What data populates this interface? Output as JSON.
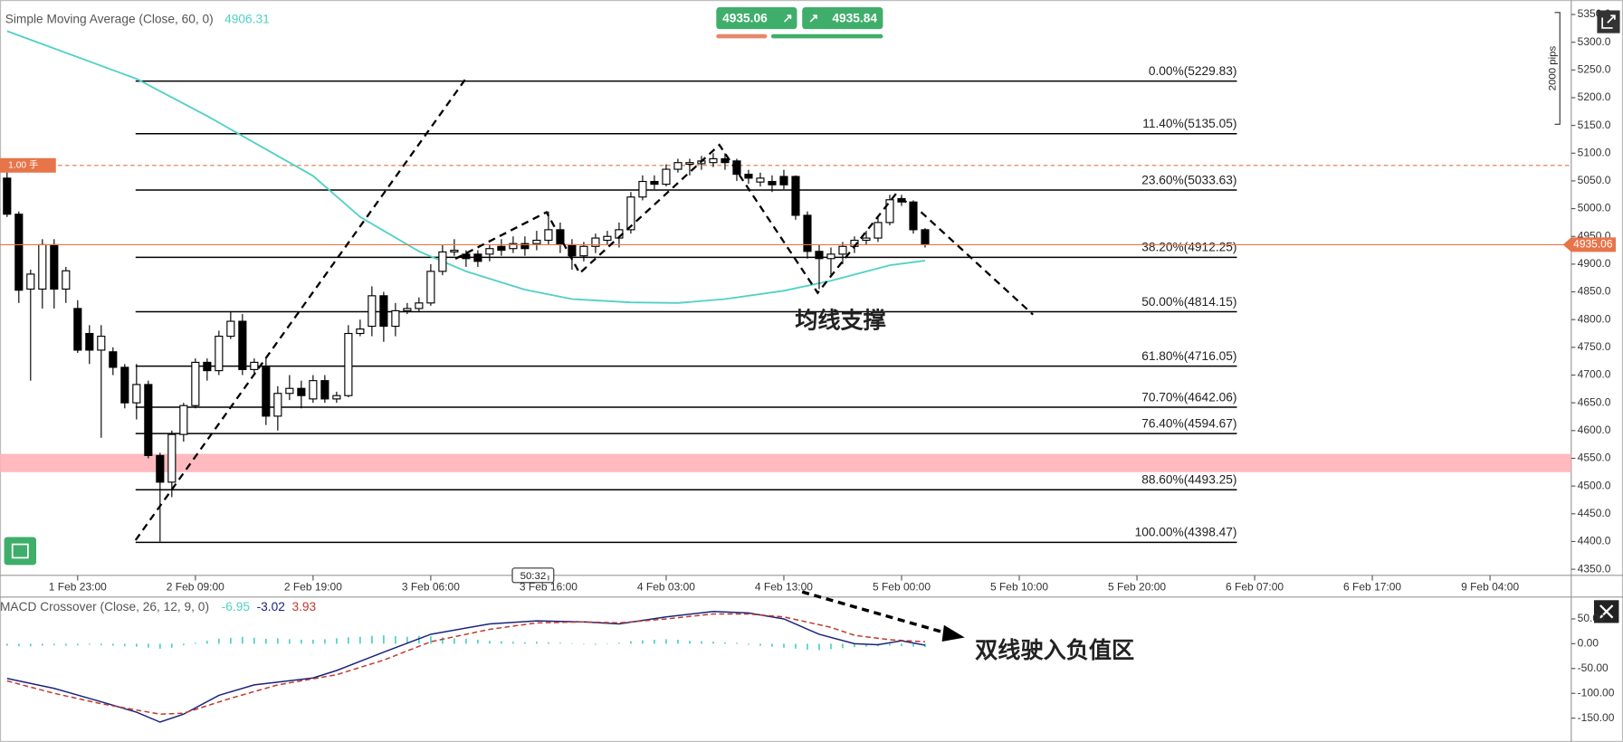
{
  "chart_data": [
    {
      "type": "candlestick",
      "title": "Simple Moving Average (Close, 60, 0)",
      "xlim": [
        -0.6,
        132.9
      ],
      "ylim": [
        4339,
        5376
      ],
      "yticks": [
        {
          "value": 5350,
          "label": "5350.0"
        },
        {
          "value": 5300,
          "label": "5300.0"
        },
        {
          "value": 5250,
          "label": "5250.0"
        },
        {
          "value": 5200,
          "label": "5200.0"
        },
        {
          "value": 5150,
          "label": "5150.0"
        },
        {
          "value": 5100,
          "label": "5100.0"
        },
        {
          "value": 5050,
          "label": "5050.0"
        },
        {
          "value": 5000,
          "label": "5000.0"
        },
        {
          "value": 4950,
          "label": "4950.0"
        },
        {
          "value": 4900,
          "label": "4900.0"
        },
        {
          "value": 4850,
          "label": "4850.0"
        },
        {
          "value": 4800,
          "label": "4800.0"
        },
        {
          "value": 4750,
          "label": "4750.0"
        },
        {
          "value": 4700,
          "label": "4700.0"
        },
        {
          "value": 4650,
          "label": "4650.0"
        },
        {
          "value": 4600,
          "label": "4600.0"
        },
        {
          "value": 4550,
          "label": "4550.0"
        },
        {
          "value": 4500,
          "label": "4500.0"
        },
        {
          "value": 4450,
          "label": "4450.0"
        },
        {
          "value": 4400,
          "label": "4400.0"
        },
        {
          "value": 4350,
          "label": "4350.0"
        }
      ],
      "xticks": [
        {
          "value": 6,
          "label": "1 Feb 23:00"
        },
        {
          "value": 16,
          "label": "2 Feb 09:00"
        },
        {
          "value": 26,
          "label": "2 Feb 19:00"
        },
        {
          "value": 36,
          "label": "3 Feb 06:00"
        },
        {
          "value": 46,
          "label": "3 Feb 16:00"
        },
        {
          "value": 56,
          "label": "4 Feb 03:00"
        },
        {
          "value": 66,
          "label": "4 Feb 13:00"
        },
        {
          "value": 76,
          "label": "5 Feb 00:00"
        },
        {
          "value": 86,
          "label": "5 Feb 10:00"
        },
        {
          "value": 96,
          "label": "5 Feb 20:00"
        },
        {
          "value": 106,
          "label": "6 Feb 07:00"
        },
        {
          "value": 116,
          "label": "6 Feb 17:00"
        },
        {
          "value": 126,
          "label": "9 Feb 04:00"
        }
      ],
      "up_color": "#ffffff",
      "down_color": "#000000",
      "candles": {
        "open": [
          5055,
          4990,
          4855,
          4855,
          4935,
          4855,
          4820,
          4775,
          4745,
          4742,
          4714,
          4650,
          4683,
          4555,
          4507,
          4593,
          4645,
          4723,
          4708,
          4770,
          4797,
          4710,
          4714,
          4626,
          4667,
          4676,
          4657,
          4690,
          4657,
          4663,
          4775,
          4788,
          4843,
          4788,
          4816,
          4820,
          4830,
          4887,
          4922,
          4918,
          4918,
          4918,
          4932,
          4928,
          4937,
          4937,
          4943,
          4962,
          4935,
          4915,
          4932,
          4943,
          4947,
          4962,
          5021,
          5049,
          5044,
          5071,
          5080,
          5081,
          5083,
          5090,
          5086,
          5062,
          5048,
          5049,
          5058,
          5058,
          4988,
          4923,
          4910,
          4918,
          4932,
          4943,
          4947,
          4975,
          5018,
          5012,
          4962
        ],
        "high": [
          5065,
          4995,
          4890,
          4945,
          4945,
          4895,
          4835,
          4790,
          4790,
          4750,
          4720,
          4720,
          4690,
          4560,
          4600,
          4650,
          4730,
          4730,
          4780,
          4815,
          4810,
          4730,
          4730,
          4680,
          4700,
          4690,
          4700,
          4700,
          4670,
          4790,
          4800,
          4860,
          4850,
          4830,
          4830,
          4840,
          4900,
          4935,
          4945,
          4925,
          4925,
          4935,
          4945,
          4950,
          4950,
          4960,
          4995,
          4975,
          4945,
          4940,
          4955,
          4960,
          4975,
          5030,
          5060,
          5060,
          5080,
          5090,
          5090,
          5095,
          5100,
          5100,
          5090,
          5070,
          5065,
          5060,
          5070,
          5060,
          4995,
          4935,
          4930,
          4940,
          4950,
          4960,
          4985,
          5025,
          5025,
          5015,
          4965
        ],
        "low": [
          4985,
          4830,
          4690,
          4820,
          4820,
          4830,
          4740,
          4720,
          4587,
          4700,
          4640,
          4620,
          4550,
          4400,
          4480,
          4580,
          4640,
          4690,
          4700,
          4765,
          4700,
          4700,
          4610,
          4600,
          4655,
          4640,
          4650,
          4650,
          4650,
          4660,
          4770,
          4770,
          4760,
          4770,
          4810,
          4815,
          4825,
          4880,
          4915,
          4895,
          4895,
          4905,
          4915,
          4920,
          4915,
          4925,
          4935,
          4920,
          4890,
          4905,
          4920,
          4935,
          4930,
          4955,
          5015,
          5035,
          5040,
          5065,
          5060,
          5070,
          5075,
          5070,
          5050,
          5045,
          5040,
          5030,
          5035,
          4980,
          4910,
          4855,
          4880,
          4900,
          4920,
          4935,
          4940,
          4970,
          5005,
          4955,
          4930
        ],
        "close": [
          4990,
          4853,
          4882,
          4935,
          4855,
          4888,
          4745,
          4745,
          4770,
          4714,
          4650,
          4683,
          4555,
          4507,
          4593,
          4645,
          4723,
          4708,
          4770,
          4797,
          4710,
          4723,
          4626,
          4667,
          4676,
          4663,
          4690,
          4657,
          4663,
          4775,
          4783,
          4843,
          4788,
          4816,
          4820,
          4830,
          4887,
          4922,
          4925,
          4910,
          4905,
          4928,
          4925,
          4937,
          4928,
          4943,
          4962,
          4935,
          4915,
          4932,
          4947,
          4950,
          4962,
          5021,
          5049,
          5044,
          5071,
          5083,
          5083,
          5086,
          5090,
          5083,
          5062,
          5055,
          5055,
          5043,
          5043,
          4988,
          4923,
          4910,
          4918,
          4932,
          4943,
          4947,
          4975,
          5016,
          5012,
          4962,
          4935.06
        ]
      },
      "ma": {
        "color": "#4fd1c5",
        "x": [
          0,
          11,
          17,
          26,
          30,
          35,
          39,
          44,
          48,
          53,
          57,
          61,
          66,
          70,
          75,
          78
        ],
        "values": [
          5320,
          5234,
          5167,
          5059,
          4985,
          4923,
          4887,
          4854,
          4837,
          4831,
          4830,
          4837,
          4852,
          4870,
          4898,
          4906.31
        ]
      },
      "fib_levels": [
        {
          "label": "0.00%(5229.83)",
          "price": 5229.83
        },
        {
          "label": "11.40%(5135.05)",
          "price": 5135.05
        },
        {
          "label": "23.60%(5033.63)",
          "price": 5033.63
        },
        {
          "label": "38.20%(4912.25)",
          "price": 4912.25
        },
        {
          "label": "50.00%(4814.15)",
          "price": 4814.15
        },
        {
          "label": "61.80%(4716.05)",
          "price": 4716.05
        },
        {
          "label": "70.70%(4642.06)",
          "price": 4642.06
        },
        {
          "label": "76.40%(4594.67)",
          "price": 4594.67
        },
        {
          "label": "88.60%(4493.25)",
          "price": 4493.25
        },
        {
          "label": "100.00%(4398.47)",
          "price": 4398.47
        }
      ],
      "position_line": {
        "label": "1.00 手",
        "price": 5078,
        "color": "#e8744a"
      },
      "zone": [
        4558,
        4525
      ],
      "zone_color": "#ffb3b8",
      "price_color": "#e8744a",
      "annotation": "均线支撑",
      "timer": "50:32",
      "scale_note": "2000 pips"
    },
    {
      "type": "macd",
      "title": "MACD Crossover (Close, 26, 12, 9, 0)",
      "xlim": [
        -0.6,
        132.9
      ],
      "ylim": [
        -198,
        94
      ],
      "yticks": [
        {
          "value": 50,
          "label": "50.00"
        },
        {
          "value": 0,
          "label": "0.00"
        },
        {
          "value": -50,
          "label": "-50.00"
        },
        {
          "value": -100,
          "label": "-100.00"
        },
        {
          "value": -150,
          "label": "-150.00"
        }
      ],
      "series": [
        {
          "color": "#4fd1c5",
          "values": [
            -4,
            -5,
            -5,
            -4,
            -3,
            -4,
            -3,
            -2,
            -3,
            -4,
            -5,
            -6,
            -8,
            -10,
            -8,
            -3,
            2,
            6,
            10,
            12,
            14,
            12,
            10,
            11,
            9,
            8,
            8,
            9,
            11,
            13,
            14,
            16,
            17,
            15,
            14,
            16,
            15,
            13,
            11,
            10,
            8,
            6,
            5,
            4,
            3,
            4,
            3,
            2,
            1,
            -1,
            -2,
            -1,
            2,
            5,
            7,
            8,
            9,
            8,
            6,
            5,
            4,
            3,
            2,
            -2,
            -4,
            -6,
            -8,
            -10,
            -12,
            -13,
            -11,
            -9,
            -7,
            -6,
            -5,
            -4,
            -5,
            -6,
            -6.95
          ]
        },
        {
          "color": "#1a237e",
          "x": [
            0,
            4,
            8,
            11,
            13,
            15,
            18,
            21,
            26,
            28,
            32,
            36,
            41,
            45,
            49,
            52,
            56,
            60,
            63,
            66,
            69,
            72,
            74,
            76,
            78
          ],
          "values": [
            -70,
            -90,
            -117,
            -138,
            -158,
            -142,
            -104,
            -83,
            -69,
            -54,
            -17,
            19,
            40,
            46,
            44,
            40,
            54,
            65,
            62,
            50,
            19,
            0,
            -2,
            6,
            -3.02
          ]
        },
        {
          "color": "#c0392b",
          "dashed": true,
          "x": [
            0,
            4,
            8,
            13,
            15,
            19,
            23,
            28,
            32,
            36,
            41,
            45,
            49,
            52,
            56,
            60,
            63,
            66,
            70,
            72,
            75,
            78
          ],
          "values": [
            -75,
            -100,
            -121,
            -142,
            -140,
            -110,
            -83,
            -62.5,
            -33,
            4,
            29,
            42,
            44,
            42,
            50,
            60,
            60,
            54,
            33,
            17,
            8,
            3.93
          ]
        }
      ],
      "annotation": "双线驶入负值区"
    }
  ],
  "trade_panel": {
    "sell": "4935.06",
    "buy": "4935.84"
  }
}
